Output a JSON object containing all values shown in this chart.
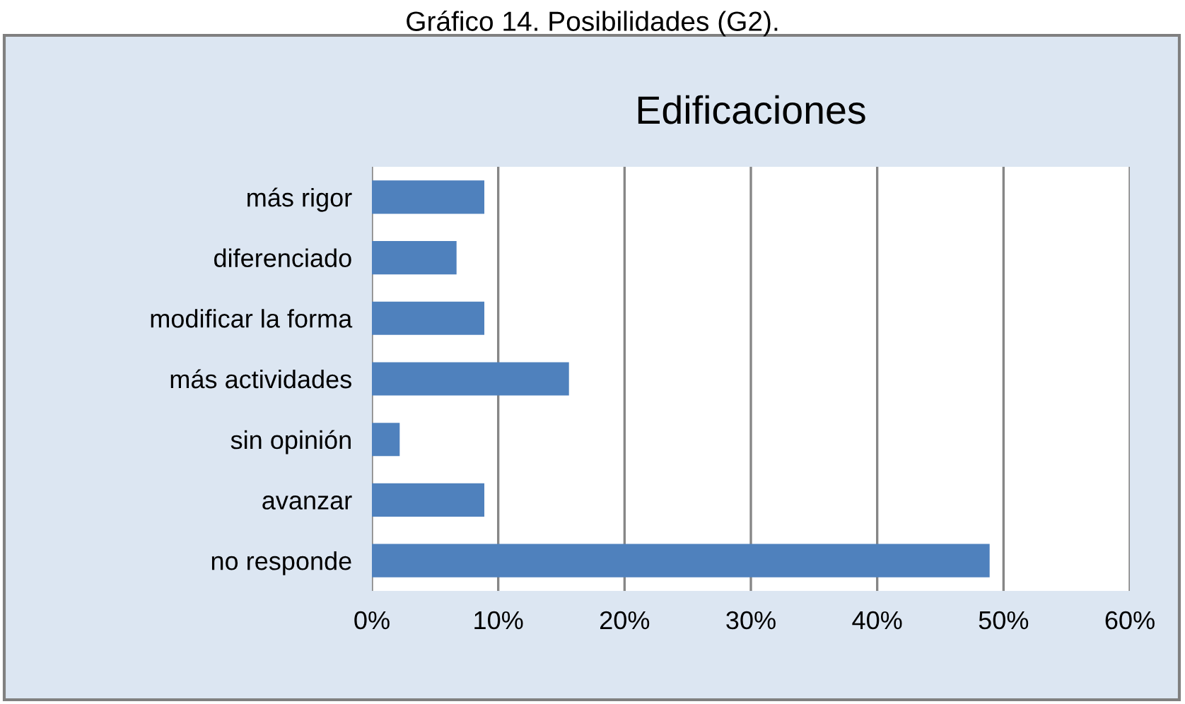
{
  "chart_data": {
    "type": "bar",
    "orientation": "horizontal",
    "title": "Edificaciones",
    "annotations": [
      "Gráfico 14. Posibilidades (G2)."
    ],
    "categories": [
      "más rigor",
      "diferenciado",
      "modificar la forma",
      "más actividades",
      "sin opinión",
      "avanzar",
      "no responde"
    ],
    "values": [
      8.9,
      6.7,
      8.9,
      15.6,
      2.2,
      8.9,
      48.9
    ],
    "color": "#4f81bd",
    "xlim": [
      0,
      60
    ],
    "xticks": [
      {
        "value": 0,
        "label": "0%"
      },
      {
        "value": 10,
        "label": "10%"
      },
      {
        "value": 20,
        "label": "20%"
      },
      {
        "value": 30,
        "label": "30%"
      },
      {
        "value": 40,
        "label": "40%"
      },
      {
        "value": 50,
        "label": "50%"
      },
      {
        "value": 60,
        "label": "60%"
      }
    ],
    "grid": "x"
  }
}
